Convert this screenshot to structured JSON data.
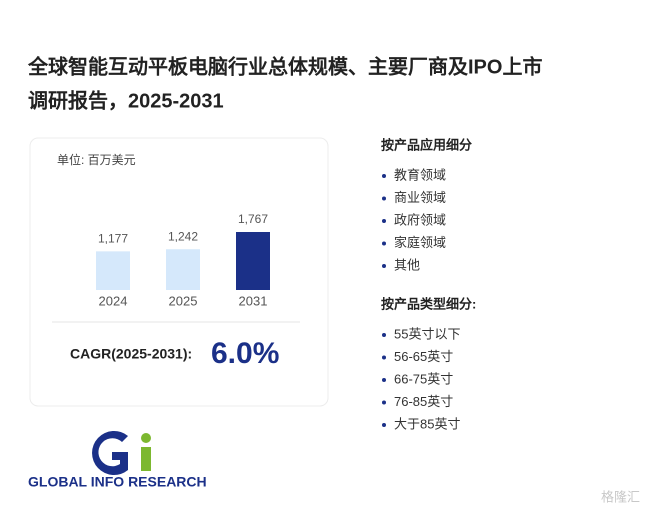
{
  "title": [
    "全球智能互动平板电脑行业总体规模、主要厂商及IPO上市",
    "调研报告，2025-2031"
  ],
  "chart_data": {
    "type": "bar",
    "subtitle": "单位: 百万美元",
    "categories": [
      "2024",
      "2025",
      "2031"
    ],
    "values": [
      1177,
      1242,
      1767
    ],
    "value_labels": [
      "1,177",
      "1,242",
      "1,767"
    ],
    "colors": [
      "#d5e8fb",
      "#d5e8fb",
      "#1b3088"
    ]
  },
  "cagr": {
    "label": "CAGR(2025-2031):",
    "value": "6.0%"
  },
  "segments": [
    {
      "heading": "按产品应用细分",
      "items": [
        "教育领域",
        "商业领域",
        "政府领域",
        "家庭领域",
        "其他"
      ]
    },
    {
      "heading": "按产品类型细分:",
      "items": [
        "55英寸以下",
        "56-65英寸",
        "66-75英寸",
        "76-85英寸",
        "大于85英寸"
      ]
    }
  ],
  "logo": "GLOBAL INFO RESEARCH",
  "watermark": "格隆汇"
}
